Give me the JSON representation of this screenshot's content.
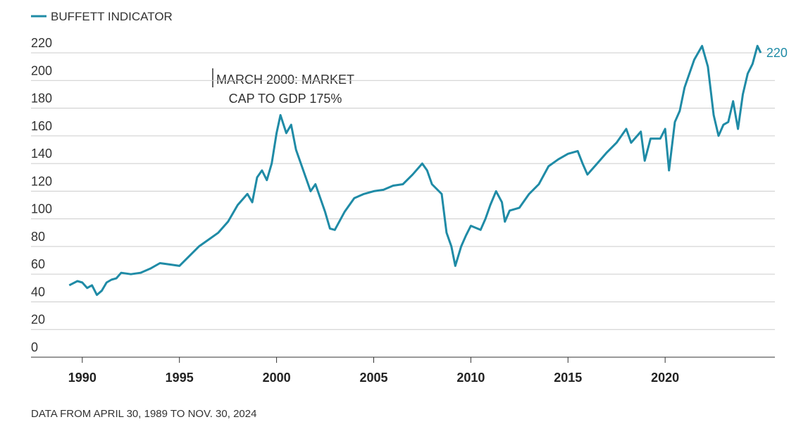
{
  "chart_data": {
    "type": "line",
    "note": "DATA FROM APRIL 30, 1989 TO NOV. 30, 2024",
    "annotation": [
      "MARCH 2000: MARKET",
      "CAP TO GDP 175%"
    ],
    "x": [
      1989.33,
      1989.75,
      1990.0,
      1990.25,
      1990.5,
      1990.75,
      1991.0,
      1991.25,
      1991.5,
      1991.75,
      1992.0,
      1992.5,
      1993.0,
      1993.5,
      1994.0,
      1994.5,
      1995.0,
      1995.5,
      1996.0,
      1996.5,
      1997.0,
      1997.5,
      1998.0,
      1998.5,
      1998.75,
      1999.0,
      1999.25,
      1999.5,
      1999.75,
      2000.0,
      2000.2,
      2000.5,
      2000.75,
      2001.0,
      2001.25,
      2001.5,
      2001.75,
      2002.0,
      2002.5,
      2002.75,
      2003.0,
      2003.5,
      2004.0,
      2004.5,
      2005.0,
      2005.5,
      2006.0,
      2006.5,
      2007.0,
      2007.5,
      2007.75,
      2008.0,
      2008.5,
      2008.75,
      2009.0,
      2009.2,
      2009.5,
      2009.75,
      2010.0,
      2010.5,
      2010.75,
      2011.0,
      2011.3,
      2011.6,
      2011.75,
      2012.0,
      2012.5,
      2013.0,
      2013.5,
      2014.0,
      2014.5,
      2015.0,
      2015.5,
      2015.75,
      2016.0,
      2016.5,
      2017.0,
      2017.5,
      2018.0,
      2018.25,
      2018.75,
      2018.95,
      2019.25,
      2019.75,
      2020.0,
      2020.2,
      2020.5,
      2020.75,
      2021.0,
      2021.5,
      2021.9,
      2022.2,
      2022.5,
      2022.75,
      2023.0,
      2023.25,
      2023.5,
      2023.75,
      2024.0,
      2024.25,
      2024.5,
      2024.75,
      2024.92
    ],
    "series": [
      {
        "name": "BUFFETT INDICATOR",
        "color": "#1f8ba6",
        "values": [
          52,
          55,
          54,
          50,
          52,
          45,
          48,
          54,
          56,
          57,
          61,
          60,
          61,
          64,
          68,
          67,
          66,
          73,
          80,
          85,
          90,
          98,
          110,
          118,
          112,
          130,
          135,
          128,
          140,
          162,
          175,
          162,
          168,
          150,
          140,
          130,
          120,
          125,
          105,
          93,
          92,
          105,
          115,
          118,
          120,
          121,
          124,
          125,
          132,
          140,
          135,
          125,
          118,
          90,
          80,
          66,
          80,
          88,
          95,
          92,
          100,
          110,
          120,
          112,
          98,
          106,
          108,
          118,
          125,
          138,
          143,
          147,
          149,
          140,
          132,
          140,
          148,
          155,
          165,
          155,
          163,
          142,
          158,
          158,
          165,
          135,
          170,
          178,
          195,
          215,
          225,
          210,
          175,
          160,
          168,
          170,
          185,
          165,
          190,
          205,
          212,
          225,
          220
        ]
      }
    ],
    "xlim": [
      1987.36,
      2025.65
    ],
    "xticks": [
      1990,
      1995,
      2000,
      2005,
      2010,
      2015,
      2020
    ],
    "ylim": [
      0,
      220
    ],
    "yticks": [
      0,
      20,
      40,
      60,
      80,
      100,
      120,
      140,
      160,
      180,
      200,
      220
    ],
    "grid": true,
    "legend": "top-left"
  }
}
